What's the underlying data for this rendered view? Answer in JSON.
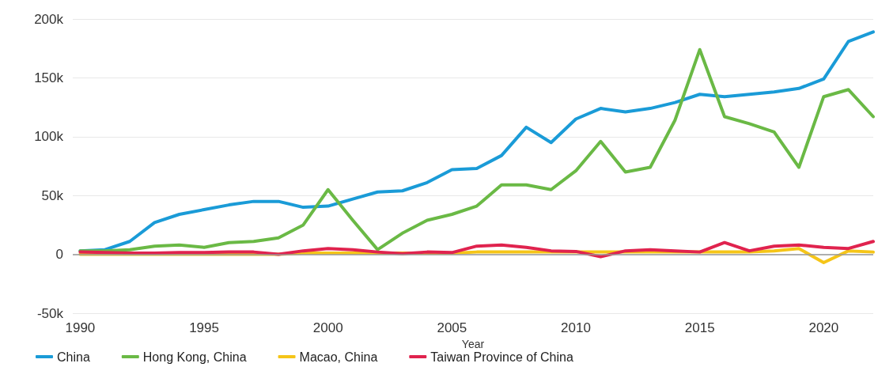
{
  "chart_data": {
    "type": "line",
    "xlabel": "Year",
    "x": [
      1990,
      1991,
      1992,
      1993,
      1994,
      1995,
      1996,
      1997,
      1998,
      1999,
      2000,
      2001,
      2002,
      2003,
      2004,
      2005,
      2006,
      2007,
      2008,
      2009,
      2010,
      2011,
      2012,
      2013,
      2014,
      2015,
      2016,
      2017,
      2018,
      2019,
      2020,
      2021,
      2022
    ],
    "xlim": [
      1989.7,
      2022
    ],
    "xticks": [
      1990,
      1995,
      2000,
      2005,
      2010,
      2015,
      2020
    ],
    "ylim": [
      -50000,
      200000
    ],
    "yticks": [
      {
        "value": -50000,
        "label": "-50k"
      },
      {
        "value": 0,
        "label": "0"
      },
      {
        "value": 50000,
        "label": "50k"
      },
      {
        "value": 100000,
        "label": "100k"
      },
      {
        "value": 150000,
        "label": "150k"
      },
      {
        "value": 200000,
        "label": "200k"
      }
    ],
    "grid": "y",
    "legend": "bottom",
    "marker": "none",
    "line_style": "solid",
    "ref_lines": [
      {
        "axis": "y",
        "value": 0,
        "color": "#999999"
      }
    ],
    "series": [
      {
        "name": "China",
        "color": "#1a9bd7",
        "values": [
          3000,
          4000,
          11000,
          27000,
          34000,
          38000,
          42000,
          45000,
          45000,
          40000,
          41000,
          47000,
          53000,
          54000,
          61000,
          72000,
          73000,
          84000,
          108000,
          95000,
          115000,
          124000,
          121000,
          124000,
          129000,
          136000,
          134000,
          136000,
          138000,
          141000,
          149000,
          181000,
          189000
        ]
      },
      {
        "name": "Hong Kong, China",
        "color": "#6ab945",
        "values": [
          3000,
          3000,
          4000,
          7000,
          8000,
          6000,
          10000,
          11000,
          14000,
          25000,
          55000,
          29000,
          4000,
          18000,
          29000,
          34000,
          41000,
          59000,
          59000,
          55000,
          71000,
          96000,
          70000,
          74000,
          114000,
          174000,
          117000,
          111000,
          104000,
          74000,
          134000,
          140000,
          117000
        ]
      },
      {
        "name": "Macao, China",
        "color": "#f5c518",
        "values": [
          0,
          0,
          0,
          0,
          0,
          0,
          0,
          0,
          0,
          1000,
          1000,
          1000,
          1000,
          1000,
          1000,
          1000,
          2000,
          2000,
          2000,
          2000,
          2000,
          2000,
          2000,
          2000,
          2000,
          2000,
          2000,
          2000,
          3000,
          5000,
          -7000,
          3000,
          2000
        ]
      },
      {
        "name": "Taiwan Province of China",
        "color": "#e0234e",
        "values": [
          2000,
          1500,
          1000,
          1000,
          1500,
          1500,
          2000,
          2000,
          0,
          3000,
          5000,
          4000,
          2000,
          500,
          2000,
          1500,
          7000,
          8000,
          6000,
          3000,
          2500,
          -2000,
          3000,
          4000,
          3000,
          2000,
          10000,
          3000,
          7000,
          8000,
          6000,
          5000,
          11000
        ]
      }
    ]
  }
}
